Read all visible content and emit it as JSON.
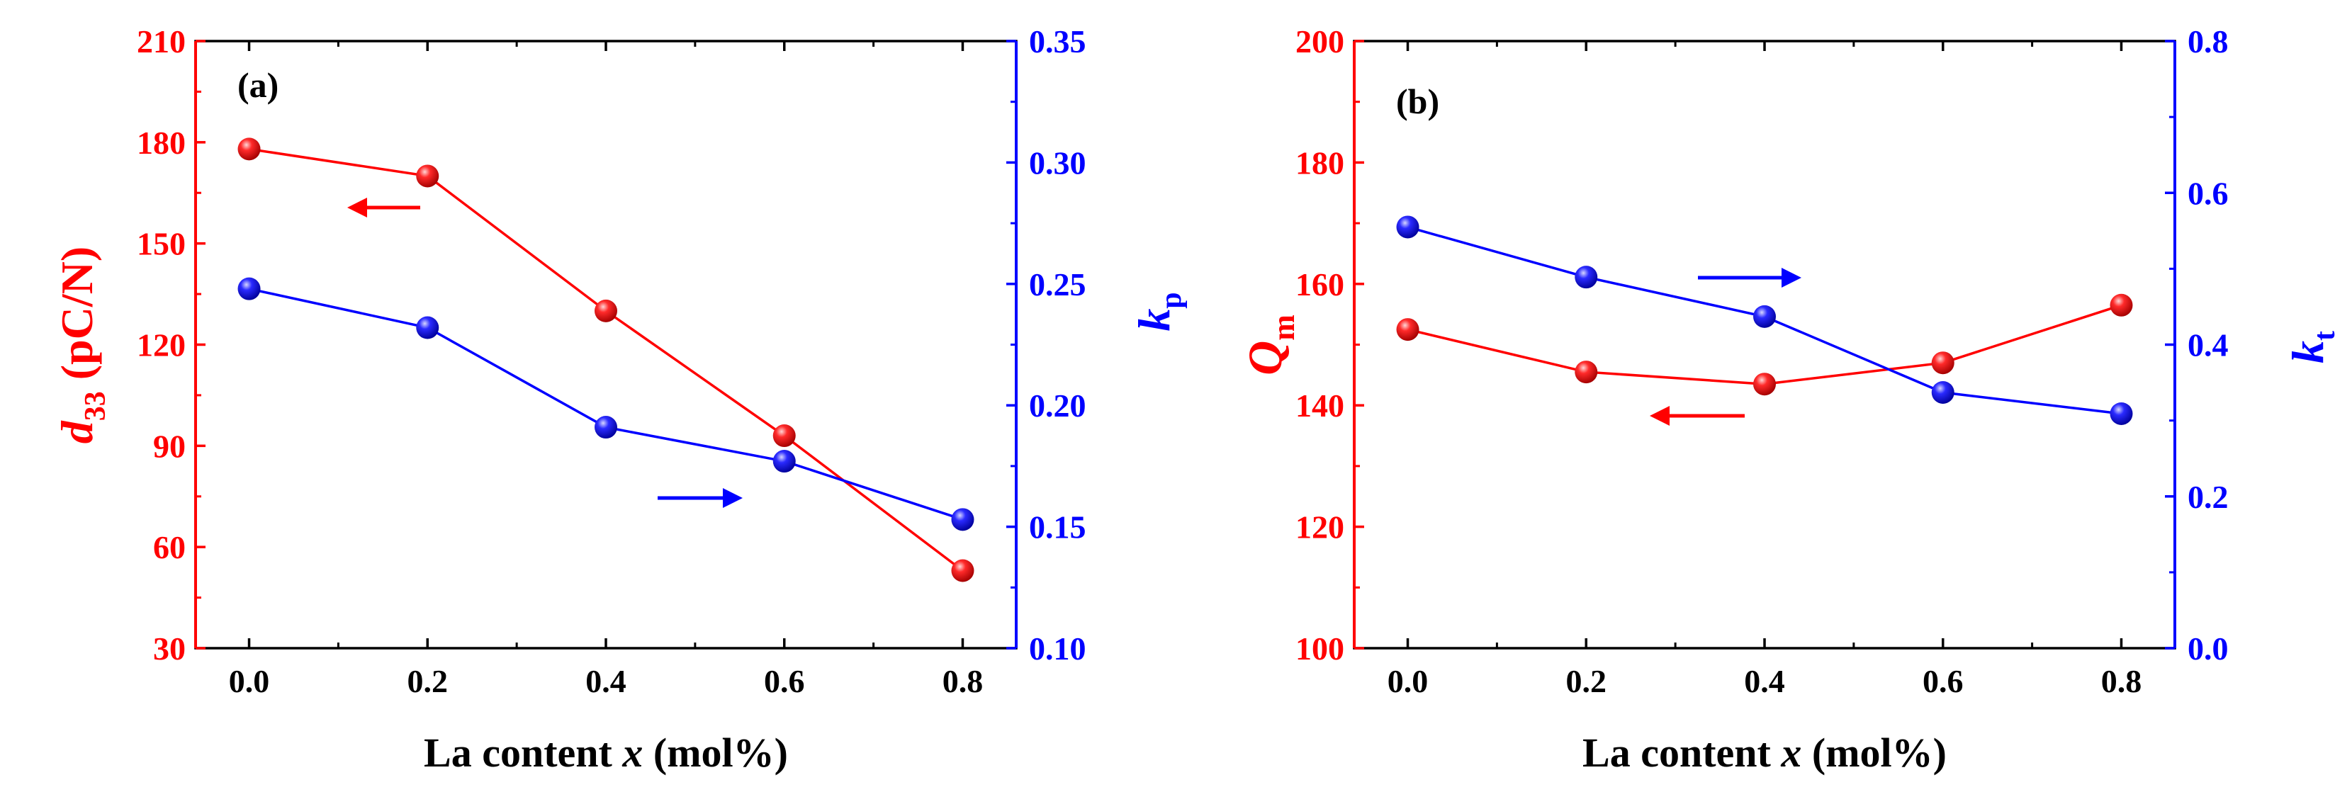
{
  "colors": {
    "left_axis": "#ff0000",
    "right_axis": "#0000ff",
    "frame": "#000000"
  },
  "chart_data": [
    {
      "type": "line",
      "panel_label": "(a)",
      "xlabel_prefix": "La content ",
      "xlabel_var": "x",
      "xlabel_suffix": " (mol%)",
      "x_ticks": [
        "0.0",
        "0.2",
        "0.4",
        "0.6",
        "0.8"
      ],
      "xlim": [
        -0.06,
        0.86
      ],
      "left_axis": {
        "label_sym": "d",
        "label_sub": "33",
        "label_unit": " (pC/N)",
        "ylim": [
          30,
          210
        ],
        "ticks": [
          "30",
          "60",
          "90",
          "120",
          "150",
          "180",
          "210"
        ]
      },
      "right_axis": {
        "label_sym": "k",
        "label_sub": "p",
        "ylim": [
          0.1,
          0.35
        ],
        "ticks": [
          "0.10",
          "0.15",
          "0.20",
          "0.25",
          "0.30",
          "0.35"
        ]
      },
      "series": [
        {
          "name": "d33",
          "axis": "left",
          "x": [
            0.0,
            0.2,
            0.4,
            0.6,
            0.8
          ],
          "values": [
            178,
            170,
            130,
            93,
            53
          ]
        },
        {
          "name": "kp",
          "axis": "right",
          "x": [
            0.0,
            0.2,
            0.4,
            0.6,
            0.8
          ],
          "values": [
            0.248,
            0.232,
            0.191,
            0.177,
            0.153
          ]
        }
      ],
      "annotations": [
        {
          "type": "arrow",
          "direction": "left",
          "series": "d33"
        },
        {
          "type": "arrow",
          "direction": "right",
          "series": "kp"
        }
      ]
    },
    {
      "type": "line",
      "panel_label": "(b)",
      "xlabel_prefix": "La content ",
      "xlabel_var": "x",
      "xlabel_suffix": " (mol%)",
      "x_ticks": [
        "0.0",
        "0.2",
        "0.4",
        "0.6",
        "0.8"
      ],
      "xlim": [
        -0.06,
        0.86
      ],
      "left_axis": {
        "label_sym": "Q",
        "label_sub": "m",
        "label_unit": "",
        "ylim": [
          100,
          200
        ],
        "ticks": [
          "100",
          "120",
          "140",
          "160",
          "180",
          "200"
        ]
      },
      "right_axis": {
        "label_sym": "k",
        "label_sub": "t",
        "ylim": [
          0.0,
          0.8
        ],
        "ticks": [
          "0.0",
          "0.2",
          "0.4",
          "0.6",
          "0.8"
        ]
      },
      "series": [
        {
          "name": "Qm",
          "axis": "left",
          "x": [
            0.0,
            0.2,
            0.4,
            0.6,
            0.8
          ],
          "values": [
            152.5,
            145.5,
            143.5,
            147,
            156.5
          ]
        },
        {
          "name": "kt",
          "axis": "right",
          "x": [
            0.0,
            0.2,
            0.4,
            0.6,
            0.8
          ],
          "values": [
            0.555,
            0.489,
            0.437,
            0.337,
            0.309
          ]
        }
      ],
      "annotations": [
        {
          "type": "arrow",
          "direction": "right",
          "series": "kt"
        },
        {
          "type": "arrow",
          "direction": "left",
          "series": "Qm"
        }
      ]
    }
  ]
}
